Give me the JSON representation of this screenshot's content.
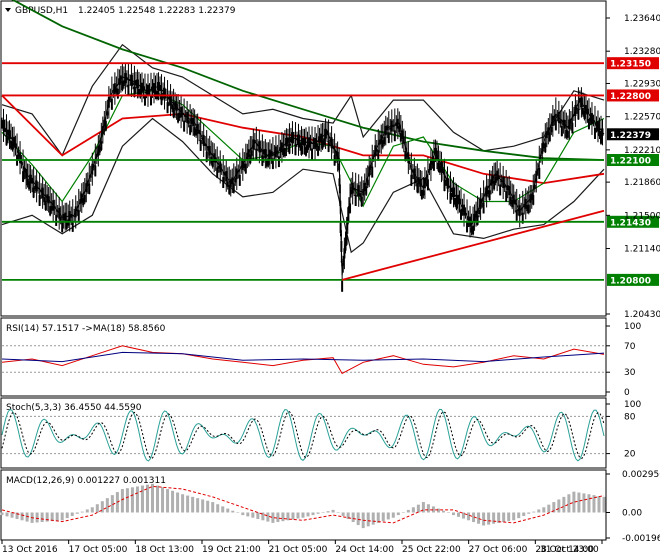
{
  "header": {
    "symbol": "GBPUSD,H1",
    "ohlc": "1.22405 1.22548 1.22283 1.22379"
  },
  "colors": {
    "candle": "#000000",
    "ma_fast": "#008000",
    "ma_slow": "#006400",
    "ma_red": "#e00000",
    "bollinger": "#1a1a1a",
    "support_resist_red": "#e00000",
    "support_resist_green": "#008000",
    "trendline": "#e00000",
    "rsi": "#e00000",
    "rsi_ma": "#000080",
    "stoch_main": "#2aa198",
    "stoch_signal": "#000000",
    "macd_hist": "#b0b0b0",
    "macd_signal": "#e00000",
    "current_price_tag": "#000000"
  },
  "chart_data": [
    {
      "type": "line",
      "title": "GBPUSD,H1 1.22405 1.22548 1.22283 1.22379",
      "ylim": [
        1.2043,
        1.2364
      ],
      "yticks": [
        "1.23640",
        "1.23280",
        "1.22930",
        "1.22570",
        "1.22210",
        "1.21860",
        "1.21500",
        "1.21140",
        "1.20430"
      ],
      "x_ticks": [
        "13 Oct 2016",
        "17 Oct 05:00",
        "18 Oct 13:00",
        "19 Oct 21:00",
        "21 Oct 05:00",
        "24 Oct 14:00",
        "25 Oct 22:00",
        "27 Oct 06:00",
        "28 Oct 14:00",
        "31 Oct 23:00"
      ],
      "horizontal_levels": [
        {
          "value": 1.2315,
          "label": "1.23150",
          "color": "red"
        },
        {
          "value": 1.228,
          "label": "1.22800",
          "color": "red"
        },
        {
          "value": 1.221,
          "label": "1.22100",
          "color": "green"
        },
        {
          "value": 1.2143,
          "label": "1.21430",
          "color": "green"
        },
        {
          "value": 1.208,
          "label": "1.20800",
          "color": "green"
        }
      ],
      "current_price": {
        "value": 1.22379,
        "label": "1.22379"
      },
      "trendline": {
        "x": [
          0.565,
          1.0
        ],
        "y": [
          1.208,
          1.2155
        ]
      },
      "series": [
        {
          "key": "price",
          "x": [
            0,
            0.02,
            0.04,
            0.06,
            0.08,
            0.1,
            0.12,
            0.14,
            0.16,
            0.18,
            0.2,
            0.22,
            0.24,
            0.26,
            0.28,
            0.3,
            0.32,
            0.34,
            0.36,
            0.38,
            0.4,
            0.42,
            0.44,
            0.46,
            0.48,
            0.5,
            0.52,
            0.54,
            0.56,
            0.565,
            0.58,
            0.6,
            0.62,
            0.64,
            0.66,
            0.68,
            0.7,
            0.72,
            0.74,
            0.76,
            0.78,
            0.8,
            0.82,
            0.84,
            0.86,
            0.88,
            0.9,
            0.92,
            0.94,
            0.96,
            0.98,
            1.0
          ],
          "y": [
            1.225,
            1.223,
            1.2195,
            1.218,
            1.2165,
            1.2148,
            1.215,
            1.218,
            1.222,
            1.228,
            1.23,
            1.2295,
            1.2285,
            1.229,
            1.2275,
            1.226,
            1.225,
            1.2225,
            1.2205,
            1.2185,
            1.2205,
            1.223,
            1.2215,
            1.222,
            1.2235,
            1.223,
            1.2228,
            1.224,
            1.221,
            1.2085,
            1.218,
            1.2175,
            1.222,
            1.2245,
            1.225,
            1.22,
            1.218,
            1.222,
            1.2185,
            1.2165,
            1.214,
            1.217,
            1.2195,
            1.218,
            1.2155,
            1.217,
            1.223,
            1.226,
            1.2245,
            1.2275,
            1.2255,
            1.2238
          ]
        },
        {
          "key": "ma_long",
          "x": [
            0,
            0.1,
            0.2,
            0.3,
            0.4,
            0.5,
            0.6,
            0.7,
            0.8,
            0.9,
            1.0
          ],
          "y": [
            1.239,
            1.2355,
            1.233,
            1.231,
            1.2285,
            1.2265,
            1.2245,
            1.223,
            1.222,
            1.2212,
            1.221
          ]
        },
        {
          "key": "ma_mid",
          "x": [
            0,
            0.1,
            0.2,
            0.3,
            0.4,
            0.5,
            0.6,
            0.7,
            0.8,
            0.9,
            1.0
          ],
          "y": [
            1.228,
            1.2215,
            1.2255,
            1.226,
            1.2245,
            1.2235,
            1.2215,
            1.2215,
            1.2195,
            1.2185,
            1.2195
          ]
        },
        {
          "key": "ma_fast",
          "x": [
            0,
            0.05,
            0.1,
            0.15,
            0.2,
            0.25,
            0.3,
            0.35,
            0.4,
            0.45,
            0.5,
            0.55,
            0.6,
            0.65,
            0.7,
            0.75,
            0.8,
            0.85,
            0.9,
            0.95,
            1.0
          ],
          "y": [
            1.224,
            1.2205,
            1.2165,
            1.2215,
            1.228,
            1.2285,
            1.227,
            1.224,
            1.221,
            1.2215,
            1.223,
            1.2225,
            1.216,
            1.2225,
            1.2235,
            1.2185,
            1.2165,
            1.2165,
            1.2185,
            1.224,
            1.2255
          ]
        },
        {
          "key": "bb_upper",
          "x": [
            0,
            0.05,
            0.1,
            0.15,
            0.2,
            0.25,
            0.3,
            0.35,
            0.4,
            0.45,
            0.5,
            0.55,
            0.58,
            0.6,
            0.65,
            0.7,
            0.75,
            0.8,
            0.85,
            0.9,
            0.95,
            1.0
          ],
          "y": [
            1.227,
            1.226,
            1.2215,
            1.229,
            1.2335,
            1.231,
            1.23,
            1.228,
            1.226,
            1.2265,
            1.2255,
            1.225,
            1.228,
            1.2235,
            1.2275,
            1.2275,
            1.224,
            1.222,
            1.2225,
            1.2235,
            1.2285,
            1.2275
          ]
        },
        {
          "key": "bb_lower",
          "x": [
            0,
            0.05,
            0.1,
            0.15,
            0.2,
            0.25,
            0.3,
            0.35,
            0.4,
            0.45,
            0.5,
            0.55,
            0.58,
            0.6,
            0.65,
            0.7,
            0.75,
            0.8,
            0.85,
            0.9,
            0.95,
            1.0
          ],
          "y": [
            1.214,
            1.215,
            1.213,
            1.215,
            1.2225,
            1.2255,
            1.223,
            1.2195,
            1.217,
            1.2175,
            1.22,
            1.2195,
            1.211,
            1.212,
            1.2175,
            1.219,
            1.213,
            1.2125,
            1.2135,
            1.214,
            1.2165,
            1.22
          ]
        }
      ]
    },
    {
      "type": "line",
      "title": "RSI(14) 57.1517 ->MA(18) 58.8560",
      "ylim": [
        0,
        100
      ],
      "yticks": [
        "100",
        "70",
        "30",
        "0"
      ],
      "series": [
        {
          "key": "rsi",
          "x": [
            0,
            0.05,
            0.1,
            0.15,
            0.2,
            0.25,
            0.3,
            0.35,
            0.4,
            0.45,
            0.5,
            0.55,
            0.565,
            0.6,
            0.65,
            0.7,
            0.75,
            0.8,
            0.85,
            0.9,
            0.95,
            1.0
          ],
          "y": [
            45,
            50,
            40,
            55,
            70,
            60,
            58,
            50,
            45,
            40,
            48,
            52,
            28,
            45,
            55,
            42,
            38,
            45,
            55,
            50,
            65,
            57
          ]
        },
        {
          "key": "rsi_ma",
          "x": [
            0,
            0.1,
            0.2,
            0.3,
            0.4,
            0.5,
            0.6,
            0.7,
            0.8,
            0.9,
            1.0
          ],
          "y": [
            50,
            46,
            60,
            58,
            48,
            50,
            48,
            50,
            46,
            53,
            59
          ]
        }
      ]
    },
    {
      "type": "line",
      "title": "Stoch(5,3,3) 36.4550 44.5590",
      "ylim": [
        0,
        100
      ],
      "yticks": [
        "100",
        "80",
        "20"
      ],
      "series": [
        {
          "key": "stoch_main",
          "x": [],
          "y": []
        },
        {
          "key": "stoch_signal",
          "x": [],
          "y": []
        }
      ]
    },
    {
      "type": "bar",
      "title": "MACD(12,26,9) 0.001227 0.001311",
      "ylim": [
        -0.00196,
        0.002956
      ],
      "yticks": [
        "0.002956",
        "0.00",
        "-0.00196"
      ],
      "series": [
        {
          "key": "macd_hist",
          "x": [
            0,
            0.05,
            0.1,
            0.15,
            0.2,
            0.25,
            0.3,
            0.35,
            0.4,
            0.45,
            0.5,
            0.55,
            0.6,
            0.65,
            0.7,
            0.75,
            0.8,
            0.85,
            0.9,
            0.95,
            1.0
          ],
          "y": [
            -0.0002,
            -0.0008,
            -0.0006,
            0.0004,
            0.0018,
            0.0022,
            0.0014,
            0.0008,
            -0.0002,
            -0.0008,
            -0.0004,
            0.0002,
            -0.0012,
            -0.0004,
            0.0008,
            -0.0002,
            -0.001,
            -0.0006,
            0.0004,
            0.0016,
            0.0012
          ]
        },
        {
          "key": "macd_signal",
          "x": [
            0,
            0.05,
            0.1,
            0.15,
            0.2,
            0.25,
            0.3,
            0.35,
            0.4,
            0.45,
            0.5,
            0.55,
            0.6,
            0.65,
            0.7,
            0.75,
            0.8,
            0.85,
            0.9,
            0.95,
            1.0
          ],
          "y": [
            0.0002,
            -0.0004,
            -0.0007,
            -0.0002,
            0.001,
            0.002,
            0.0018,
            0.0012,
            0.0004,
            -0.0004,
            -0.0006,
            -0.0002,
            -0.0006,
            -0.0008,
            0.0002,
            0.0002,
            -0.0006,
            -0.0008,
            -0.0002,
            0.0008,
            0.0013
          ]
        }
      ]
    }
  ]
}
